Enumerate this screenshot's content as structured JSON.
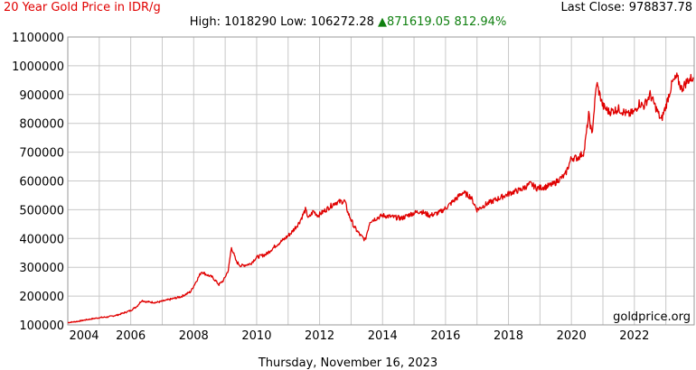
{
  "header": {
    "title": "20 Year Gold Price in IDR/g",
    "last_close_label": "Last Close:",
    "last_close_value": "978837.78",
    "high_label": "High:",
    "high_value": "1018290",
    "low_label": "Low:",
    "low_value": "106272.28",
    "change_abs": "871619.05",
    "change_pct": "812.94%",
    "up_arrow": "▲"
  },
  "footer": {
    "date": "Thursday, November 16, 2023"
  },
  "watermark": "goldprice.org",
  "colors": {
    "line": "#e00000",
    "title": "#e00000",
    "change": "#108010",
    "grid": "#c8c8c8"
  },
  "chart_data": {
    "type": "line",
    "ylim": [
      100000,
      1100000
    ],
    "xlim": [
      2004.0,
      2023.9
    ],
    "y_ticks": [
      "100000",
      "200000",
      "300000",
      "400000",
      "500000",
      "600000",
      "700000",
      "800000",
      "900000",
      "1000000",
      "1100000"
    ],
    "x_ticks": [
      "2004",
      "2006",
      "2008",
      "2010",
      "2012",
      "2014",
      "2016",
      "2018",
      "2020",
      "2022"
    ],
    "grid": true,
    "series": [
      {
        "x": [
          2004.0,
          2004.3,
          2004.6,
          2005.0,
          2005.3,
          2005.6,
          2006.0,
          2006.2,
          2006.35,
          2006.5,
          2006.8,
          2007.0,
          2007.3,
          2007.6,
          2007.9,
          2008.1,
          2008.25,
          2008.4,
          2008.6,
          2008.8,
          2008.95,
          2009.1,
          2009.2,
          2009.35,
          2009.5,
          2009.8,
          2010.0,
          2010.3,
          2010.6,
          2010.9,
          2011.1,
          2011.35,
          2011.55,
          2011.65,
          2011.8,
          2011.95,
          2012.2,
          2012.5,
          2012.8,
          2012.9,
          2013.1,
          2013.3,
          2013.45,
          2013.6,
          2013.8,
          2014.0,
          2014.3,
          2014.6,
          2014.9,
          2015.2,
          2015.5,
          2015.8,
          2016.0,
          2016.3,
          2016.55,
          2016.8,
          2017.0,
          2017.3,
          2017.6,
          2017.9,
          2018.1,
          2018.4,
          2018.7,
          2018.9,
          2019.2,
          2019.45,
          2019.6,
          2019.8,
          2020.0,
          2020.2,
          2020.4,
          2020.55,
          2020.65,
          2020.8,
          2021.0,
          2021.2,
          2021.5,
          2021.8,
          2022.0,
          2022.15,
          2022.3,
          2022.5,
          2022.7,
          2022.85,
          2023.0,
          2023.2,
          2023.35,
          2023.5,
          2023.7,
          2023.87
        ],
        "y": [
          108000,
          112000,
          118000,
          125000,
          128000,
          135000,
          150000,
          165000,
          185000,
          180000,
          178000,
          182000,
          190000,
          198000,
          215000,
          255000,
          285000,
          275000,
          265000,
          240000,
          255000,
          290000,
          370000,
          320000,
          305000,
          312000,
          335000,
          345000,
          375000,
          400000,
          420000,
          455000,
          500000,
          470000,
          495000,
          480000,
          500000,
          525000,
          530000,
          490000,
          440000,
          410000,
          395000,
          460000,
          470000,
          480000,
          475000,
          470000,
          485000,
          495000,
          480000,
          490000,
          505000,
          535000,
          560000,
          545000,
          500000,
          520000,
          535000,
          550000,
          560000,
          570000,
          590000,
          575000,
          580000,
          590000,
          605000,
          620000,
          680000,
          680000,
          700000,
          830000,
          760000,
          940000,
          860000,
          840000,
          850000,
          830000,
          840000,
          870000,
          860000,
          900000,
          850000,
          810000,
          860000,
          940000,
          960000,
          920000,
          950000,
          960000
        ]
      }
    ],
    "annotations": [
      "goldprice.org"
    ]
  }
}
